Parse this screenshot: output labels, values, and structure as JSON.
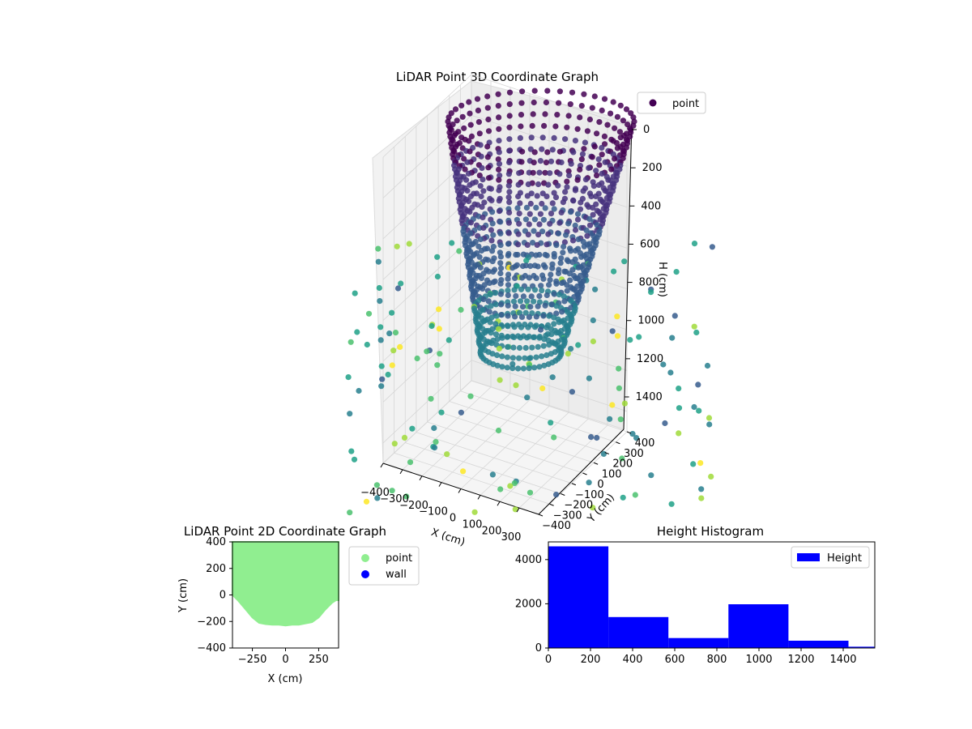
{
  "chart_data": [
    {
      "type": "scatter",
      "projection": "3d",
      "title": "LiDAR Point 3D Coordinate Graph",
      "xlabel": "X (cm)",
      "ylabel": "Y (cm)",
      "zlabel": "H (cm)",
      "xlim": [
        -400,
        400
      ],
      "ylim": [
        -400,
        400
      ],
      "zlim": [
        1500,
        0
      ],
      "x_ticks": [
        "−400",
        "−300",
        "−200",
        "−100",
        "0",
        "100",
        "200",
        "300"
      ],
      "y_ticks": [
        "−400",
        "−300",
        "−200",
        "−100",
        "0",
        "100",
        "200",
        "300",
        "400"
      ],
      "z_ticks": [
        "0",
        "200",
        "400",
        "600",
        "800",
        "1000",
        "1200",
        "1400"
      ],
      "legend": [
        "point"
      ],
      "legend_position": "top-right",
      "colormap": "viridis",
      "grid": true
    },
    {
      "type": "scatter",
      "title": "LiDAR Point 2D Coordinate Graph",
      "xlabel": "X (cm)",
      "ylabel": "Y (cm)",
      "xlim": [
        -400,
        400
      ],
      "ylim": [
        -400,
        400
      ],
      "x_ticks": [
        -250,
        0,
        250
      ],
      "x_tick_labels": [
        "−250",
        "0",
        "250"
      ],
      "y_ticks": [
        -400,
        -200,
        0,
        200,
        400
      ],
      "y_tick_labels": [
        "−400",
        "−200",
        "0",
        "200",
        "400"
      ],
      "series": [
        {
          "name": "point",
          "color": "#90ee90"
        },
        {
          "name": "wall",
          "color": "#0000ff",
          "values": []
        }
      ],
      "point_region_bottom_edge": [
        {
          "x": -400,
          "y": 0
        },
        {
          "x": -360,
          "y": -40
        },
        {
          "x": -300,
          "y": -110
        },
        {
          "x": -250,
          "y": -170
        },
        {
          "x": -200,
          "y": -210
        },
        {
          "x": -150,
          "y": -220
        },
        {
          "x": -100,
          "y": -225
        },
        {
          "x": -50,
          "y": -225
        },
        {
          "x": 0,
          "y": -230
        },
        {
          "x": 50,
          "y": -225
        },
        {
          "x": 100,
          "y": -225
        },
        {
          "x": 150,
          "y": -215
        },
        {
          "x": 200,
          "y": -205
        },
        {
          "x": 250,
          "y": -170
        },
        {
          "x": 300,
          "y": -110
        },
        {
          "x": 350,
          "y": -60
        },
        {
          "x": 380,
          "y": -40
        },
        {
          "x": 400,
          "y": -40
        }
      ],
      "legend_position": "outside-right"
    },
    {
      "type": "bar",
      "title": "Height Histogram",
      "xlim": [
        0,
        1550
      ],
      "ylim": [
        0,
        4800
      ],
      "x_ticks": [
        0,
        200,
        400,
        600,
        800,
        1000,
        1200,
        1400
      ],
      "y_ticks": [
        0,
        2000,
        4000
      ],
      "series": [
        {
          "name": "Height",
          "color": "#0000ff",
          "bins": [
            {
              "x0": 0,
              "x1": 285,
              "value": 4600
            },
            {
              "x0": 285,
              "x1": 570,
              "value": 1400
            },
            {
              "x0": 570,
              "x1": 855,
              "value": 450
            },
            {
              "x0": 855,
              "x1": 1140,
              "value": 1980
            },
            {
              "x0": 1140,
              "x1": 1425,
              "value": 330
            },
            {
              "x0": 1425,
              "x1": 1710,
              "value": 60
            }
          ]
        }
      ],
      "legend_position": "top-right"
    }
  ]
}
